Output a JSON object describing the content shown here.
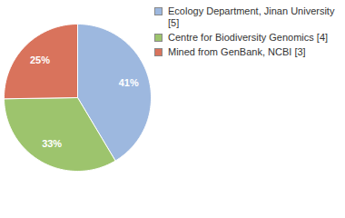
{
  "chart_data": {
    "type": "pie",
    "categories": [
      "Ecology Department, Jinan University [5]",
      "Centre for Biodiversity Genomics [4]",
      "Mined from GenBank, NCBI [3]"
    ],
    "values": [
      41,
      33,
      25
    ],
    "value_labels": [
      "41%",
      "33%",
      "25%"
    ],
    "colors": [
      "#9db8df",
      "#9dc46d",
      "#d9735c"
    ],
    "data_labels": true,
    "legend": "top-right"
  }
}
